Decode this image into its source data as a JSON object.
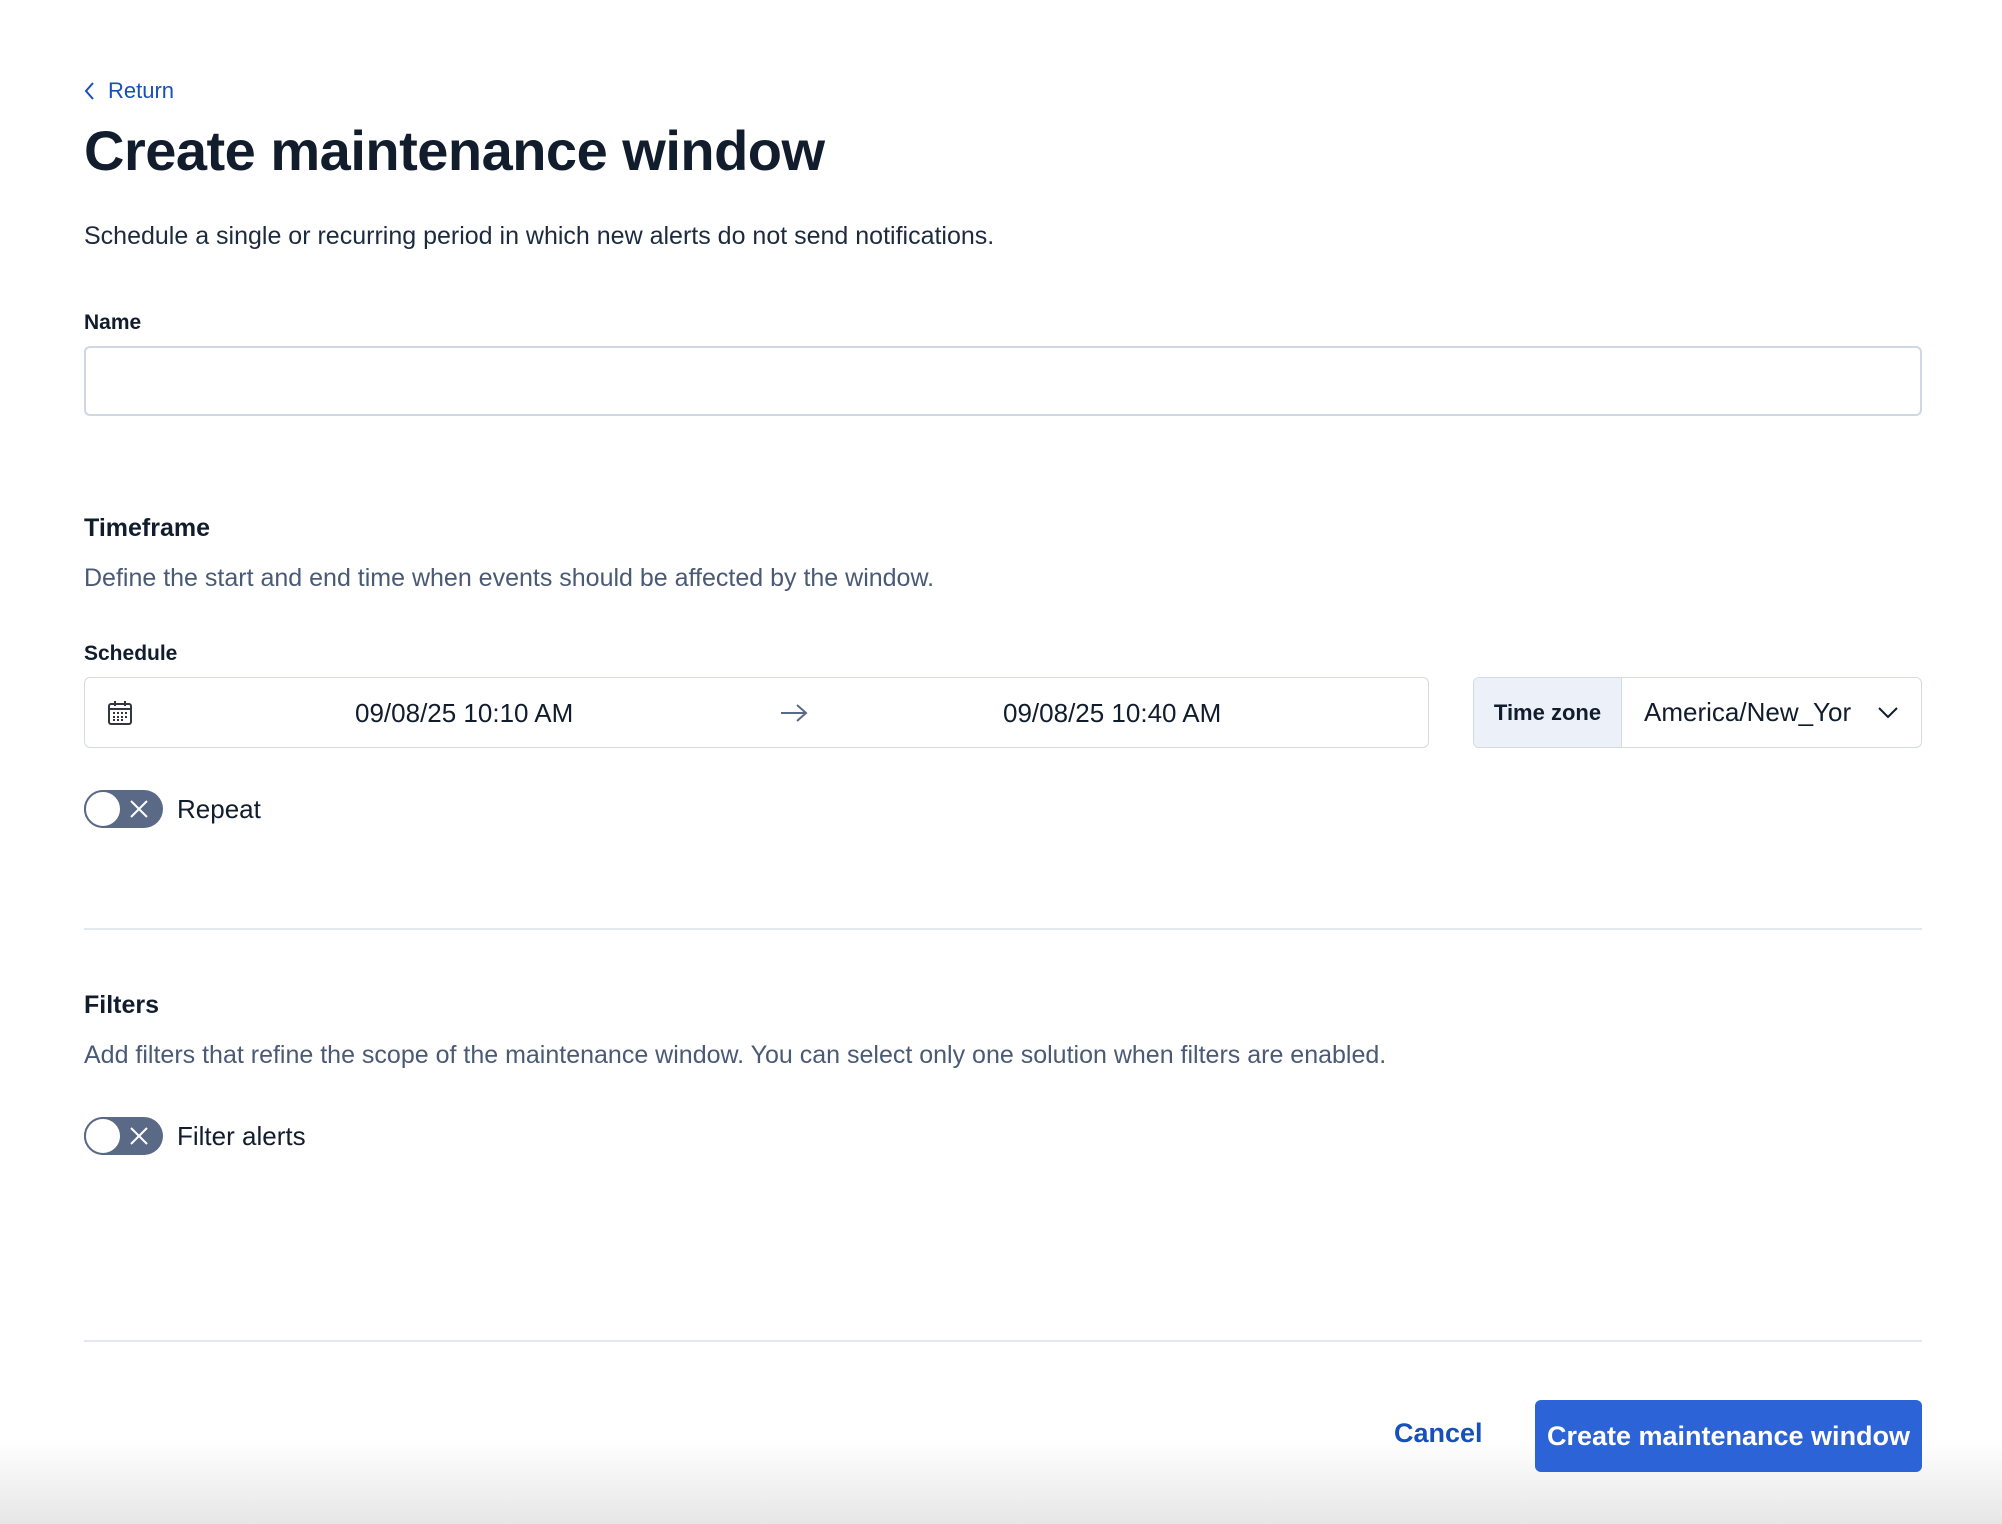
{
  "nav": {
    "return_label": "Return"
  },
  "header": {
    "title": "Create maintenance window",
    "subtitle": "Schedule a single or recurring period in which new alerts do not send notifications."
  },
  "name_field": {
    "label": "Name",
    "value": "",
    "placeholder": ""
  },
  "timeframe": {
    "heading": "Timeframe",
    "description": "Define the start and end time when events should be affected by the window.",
    "schedule_label": "Schedule",
    "start": "09/08/25 10:10 AM",
    "end": "09/08/25 10:40 AM",
    "timezone_label": "Time zone",
    "timezone_value": "America/New_Yor",
    "repeat": {
      "label": "Repeat",
      "enabled": false
    }
  },
  "filters": {
    "heading": "Filters",
    "description": "Add filters that refine the scope of the maintenance window. You can select only one solution when filters are enabled.",
    "filter_alerts": {
      "label": "Filter alerts",
      "enabled": false
    }
  },
  "footer": {
    "cancel_label": "Cancel",
    "create_label": "Create maintenance window"
  },
  "colors": {
    "accent": "#2c63d6",
    "link": "#1750ba",
    "toggle_off": "#5a6a86"
  }
}
